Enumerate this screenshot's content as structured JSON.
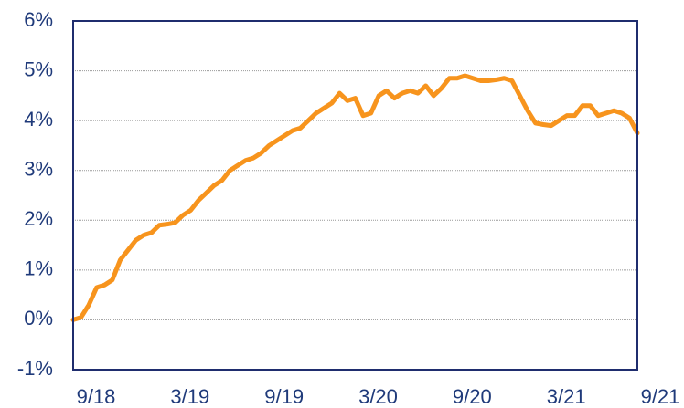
{
  "chart_data": {
    "type": "line",
    "categories": [
      "9/18",
      null,
      null,
      null,
      null,
      null,
      null,
      null,
      null,
      null,
      null,
      null,
      "3/19",
      null,
      null,
      null,
      null,
      null,
      null,
      null,
      null,
      null,
      null,
      null,
      "9/19",
      null,
      null,
      null,
      null,
      null,
      null,
      null,
      null,
      null,
      null,
      null,
      "3/20",
      null,
      null,
      null,
      null,
      null,
      null,
      null,
      null,
      null,
      null,
      null,
      "9/20",
      null,
      null,
      null,
      null,
      null,
      null,
      null,
      null,
      null,
      null,
      null,
      "3/21",
      null,
      null,
      null,
      null,
      null,
      null,
      null,
      null,
      null,
      null,
      null,
      "9/21"
    ],
    "series": [
      {
        "color": "#f7941d",
        "values": [
          0.0,
          0.05,
          0.3,
          0.65,
          0.7,
          0.8,
          1.2,
          1.4,
          1.6,
          1.7,
          1.75,
          1.9,
          1.92,
          1.95,
          2.1,
          2.2,
          2.4,
          2.55,
          2.7,
          2.8,
          3.0,
          3.1,
          3.2,
          3.25,
          3.35,
          3.5,
          3.6,
          3.7,
          3.8,
          3.85,
          4.0,
          4.15,
          4.25,
          4.35,
          4.55,
          4.4,
          4.45,
          4.1,
          4.15,
          4.5,
          4.6,
          4.45,
          4.55,
          4.6,
          4.55,
          4.7,
          4.5,
          4.65,
          4.85,
          4.85,
          4.9,
          4.85,
          4.8,
          4.8,
          4.82,
          4.85,
          4.8,
          4.5,
          4.2,
          3.95,
          3.92,
          3.9,
          4.0,
          4.1,
          4.1,
          4.3,
          4.3,
          4.1,
          4.15,
          4.2,
          4.15,
          4.05,
          3.75
        ]
      }
    ],
    "ylim": [
      -1,
      6
    ],
    "yticks": [
      {
        "value": -1,
        "label": "-1%"
      },
      {
        "value": 0,
        "label": "0%"
      },
      {
        "value": 1,
        "label": "1%"
      },
      {
        "value": 2,
        "label": "2%"
      },
      {
        "value": 3,
        "label": "3%"
      },
      {
        "value": 4,
        "label": "4%"
      },
      {
        "value": 5,
        "label": "5%"
      },
      {
        "value": 6,
        "label": "6%"
      }
    ],
    "grid": true
  }
}
